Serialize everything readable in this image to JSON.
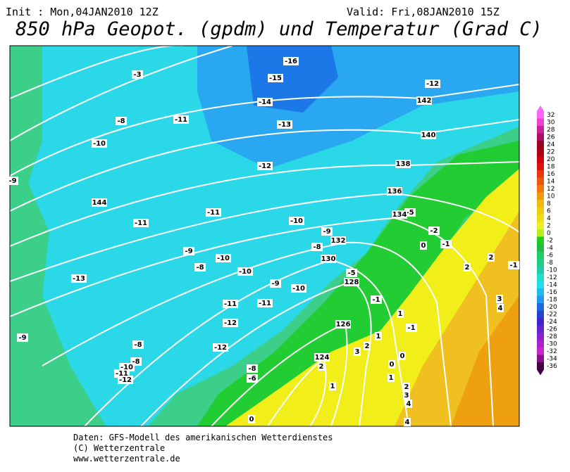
{
  "header": {
    "init": "Init : Mon,04JAN2010 12Z",
    "valid": "Valid: Fri,08JAN2010 15Z",
    "title": "850 hPa Geopot. (gpdm) und Temperatur (Grad C)"
  },
  "legend": {
    "values": [
      32,
      30,
      28,
      26,
      24,
      22,
      20,
      18,
      16,
      14,
      12,
      10,
      8,
      6,
      4,
      2,
      0,
      -2,
      -4,
      -6,
      -8,
      -10,
      -12,
      -14,
      -16,
      -18,
      -20,
      -22,
      -24,
      -26,
      -28,
      -30,
      -32,
      -34,
      -36
    ],
    "colors": [
      "#ff66ff",
      "#ee44cc",
      "#cc2299",
      "#aa1166",
      "#990022",
      "#aa0011",
      "#cc0011",
      "#dd1111",
      "#ee3311",
      "#ee5511",
      "#ee7711",
      "#ee9911",
      "#eebb11",
      "#eecc11",
      "#eedd11",
      "#eeee22",
      "#bbee22",
      "#22cc22",
      "#22bb44",
      "#22cc66",
      "#22cc88",
      "#22ccaa",
      "#22ddcc",
      "#22ddee",
      "#22bbee",
      "#2299ee",
      "#2266dd",
      "#2244cc",
      "#4422cc",
      "#6622cc",
      "#8822cc",
      "#aa22cc",
      "#cc22cc",
      "#881188",
      "#440044"
    ]
  },
  "map": {
    "temperature_labels": [
      -16,
      -15,
      -14,
      -13,
      -12,
      -3,
      -11,
      -8,
      -10,
      -12,
      -11,
      -11,
      -10,
      -9,
      -8,
      -5,
      -2,
      0,
      -1,
      -9,
      -8,
      -10,
      -10,
      -9,
      -10,
      -5,
      -1,
      1,
      -1,
      -13,
      -11,
      -11,
      -12,
      -9,
      -8,
      -12,
      -8,
      -10,
      -11,
      -12,
      -8,
      -6,
      1,
      3,
      2,
      2,
      0,
      0,
      1,
      2,
      3,
      4,
      4,
      2,
      2,
      3,
      4,
      -1,
      1,
      0,
      -9
    ],
    "geopotential_labels": [
      142,
      140,
      138,
      136,
      134,
      132,
      130,
      128,
      126,
      124,
      144
    ]
  },
  "footer": {
    "lines": [
      "Daten: GFS-Modell des amerikanischen Wetterdienstes",
      "(C) Wetterzentrale",
      "www.wetterzentrale.de"
    ]
  }
}
